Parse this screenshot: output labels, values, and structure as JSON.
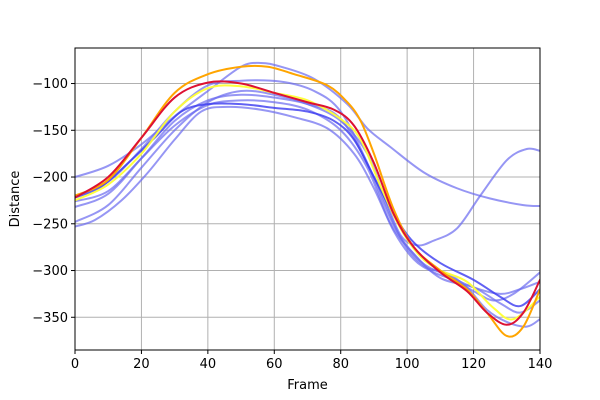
{
  "chart_data": {
    "type": "line",
    "xlabel": "Frame",
    "ylabel": "Distance",
    "xlim": [
      0,
      140
    ],
    "ylim": [
      -385,
      -62
    ],
    "xticks": [
      0,
      20,
      40,
      60,
      80,
      100,
      120,
      140
    ],
    "yticks": [
      -100,
      -150,
      -200,
      -250,
      -300,
      -350
    ],
    "grid": true,
    "series": [
      {
        "color": "#6a6af0",
        "alpha": 0.7,
        "points": [
          [
            0,
            -200
          ],
          [
            10,
            -188
          ],
          [
            20,
            -165
          ],
          [
            30,
            -135
          ],
          [
            40,
            -108
          ],
          [
            50,
            -82
          ],
          [
            56,
            -78
          ],
          [
            62,
            -82
          ],
          [
            72,
            -95
          ],
          [
            82,
            -122
          ],
          [
            88,
            -148
          ],
          [
            95,
            -168
          ],
          [
            105,
            -195
          ],
          [
            115,
            -212
          ],
          [
            125,
            -223
          ],
          [
            135,
            -230
          ],
          [
            140,
            -231
          ]
        ]
      },
      {
        "color": "#6a6af0",
        "alpha": 0.7,
        "points": [
          [
            0,
            -248
          ],
          [
            10,
            -230
          ],
          [
            20,
            -190
          ],
          [
            30,
            -150
          ],
          [
            40,
            -120
          ],
          [
            50,
            -108
          ],
          [
            60,
            -112
          ],
          [
            70,
            -122
          ],
          [
            80,
            -140
          ],
          [
            88,
            -175
          ],
          [
            93,
            -220
          ],
          [
            98,
            -262
          ],
          [
            103,
            -273
          ],
          [
            108,
            -268
          ],
          [
            115,
            -255
          ],
          [
            122,
            -220
          ],
          [
            130,
            -182
          ],
          [
            136,
            -170
          ],
          [
            140,
            -172
          ]
        ]
      },
      {
        "color": "#6a6af0",
        "alpha": 0.7,
        "points": [
          [
            0,
            -232
          ],
          [
            10,
            -218
          ],
          [
            20,
            -180
          ],
          [
            30,
            -140
          ],
          [
            40,
            -118
          ],
          [
            50,
            -112
          ],
          [
            60,
            -115
          ],
          [
            70,
            -122
          ],
          [
            80,
            -138
          ],
          [
            90,
            -200
          ],
          [
            98,
            -265
          ],
          [
            105,
            -295
          ],
          [
            112,
            -303
          ],
          [
            118,
            -318
          ],
          [
            124,
            -342
          ],
          [
            130,
            -355
          ],
          [
            136,
            -360
          ],
          [
            140,
            -352
          ]
        ]
      },
      {
        "color": "#6a6af0",
        "alpha": 0.7,
        "points": [
          [
            0,
            -253
          ],
          [
            6,
            -246
          ],
          [
            14,
            -225
          ],
          [
            22,
            -195
          ],
          [
            30,
            -160
          ],
          [
            38,
            -130
          ],
          [
            46,
            -125
          ],
          [
            56,
            -128
          ],
          [
            66,
            -136
          ],
          [
            76,
            -148
          ],
          [
            84,
            -175
          ],
          [
            90,
            -212
          ],
          [
            96,
            -258
          ],
          [
            102,
            -288
          ],
          [
            108,
            -302
          ],
          [
            114,
            -310
          ],
          [
            120,
            -322
          ],
          [
            126,
            -332
          ],
          [
            132,
            -325
          ],
          [
            140,
            -302
          ]
        ]
      },
      {
        "color": "#6a6af0",
        "alpha": 0.7,
        "points": [
          [
            0,
            -226
          ],
          [
            10,
            -215
          ],
          [
            20,
            -180
          ],
          [
            30,
            -145
          ],
          [
            40,
            -123
          ],
          [
            50,
            -118
          ],
          [
            60,
            -120
          ],
          [
            70,
            -128
          ],
          [
            80,
            -150
          ],
          [
            88,
            -190
          ],
          [
            95,
            -250
          ],
          [
            102,
            -282
          ],
          [
            110,
            -308
          ],
          [
            120,
            -318
          ],
          [
            128,
            -335
          ],
          [
            134,
            -345
          ],
          [
            140,
            -332
          ]
        ]
      },
      {
        "color": "#6a6af0",
        "alpha": 0.7,
        "points": [
          [
            0,
            -220
          ],
          [
            10,
            -205
          ],
          [
            20,
            -170
          ],
          [
            30,
            -130
          ],
          [
            40,
            -102
          ],
          [
            50,
            -97
          ],
          [
            62,
            -98
          ],
          [
            72,
            -108
          ],
          [
            80,
            -130
          ],
          [
            88,
            -185
          ],
          [
            96,
            -252
          ],
          [
            104,
            -290
          ],
          [
            112,
            -305
          ],
          [
            120,
            -318
          ],
          [
            128,
            -325
          ],
          [
            134,
            -320
          ],
          [
            140,
            -312
          ]
        ]
      },
      {
        "color": "#3a3af0",
        "alpha": 0.8,
        "points": [
          [
            0,
            -222
          ],
          [
            8,
            -210
          ],
          [
            16,
            -185
          ],
          [
            24,
            -158
          ],
          [
            32,
            -130
          ],
          [
            40,
            -122
          ],
          [
            50,
            -122
          ],
          [
            60,
            -126
          ],
          [
            70,
            -130
          ],
          [
            78,
            -140
          ],
          [
            84,
            -160
          ],
          [
            90,
            -200
          ],
          [
            96,
            -240
          ],
          [
            102,
            -270
          ],
          [
            110,
            -292
          ],
          [
            120,
            -310
          ],
          [
            128,
            -328
          ],
          [
            134,
            -338
          ],
          [
            140,
            -320
          ]
        ]
      },
      {
        "color": "#ffff33",
        "alpha": 0.95,
        "points": [
          [
            0,
            -225
          ],
          [
            10,
            -208
          ],
          [
            20,
            -175
          ],
          [
            30,
            -130
          ],
          [
            40,
            -105
          ],
          [
            50,
            -103
          ],
          [
            60,
            -110
          ],
          [
            70,
            -118
          ],
          [
            80,
            -138
          ],
          [
            86,
            -160
          ],
          [
            92,
            -210
          ],
          [
            98,
            -255
          ],
          [
            104,
            -285
          ],
          [
            110,
            -300
          ],
          [
            118,
            -312
          ],
          [
            126,
            -340
          ],
          [
            132,
            -352
          ],
          [
            140,
            -328
          ]
        ]
      },
      {
        "color": "#ffa500",
        "alpha": 1.0,
        "points": [
          [
            0,
            -220
          ],
          [
            10,
            -203
          ],
          [
            20,
            -158
          ],
          [
            30,
            -110
          ],
          [
            40,
            -90
          ],
          [
            50,
            -82
          ],
          [
            58,
            -82
          ],
          [
            66,
            -90
          ],
          [
            76,
            -102
          ],
          [
            82,
            -120
          ],
          [
            86,
            -140
          ],
          [
            90,
            -175
          ],
          [
            96,
            -235
          ],
          [
            102,
            -275
          ],
          [
            110,
            -300
          ],
          [
            118,
            -320
          ],
          [
            124,
            -345
          ],
          [
            130,
            -370
          ],
          [
            135,
            -360
          ],
          [
            140,
            -320
          ]
        ]
      },
      {
        "color": "#dd1133",
        "alpha": 1.0,
        "points": [
          [
            0,
            -222
          ],
          [
            10,
            -200
          ],
          [
            20,
            -158
          ],
          [
            30,
            -115
          ],
          [
            40,
            -99
          ],
          [
            50,
            -100
          ],
          [
            60,
            -110
          ],
          [
            70,
            -120
          ],
          [
            78,
            -128
          ],
          [
            84,
            -145
          ],
          [
            90,
            -185
          ],
          [
            96,
            -240
          ],
          [
            102,
            -275
          ],
          [
            110,
            -302
          ],
          [
            118,
            -322
          ],
          [
            124,
            -345
          ],
          [
            130,
            -358
          ],
          [
            135,
            -345
          ],
          [
            140,
            -310
          ]
        ]
      }
    ]
  }
}
